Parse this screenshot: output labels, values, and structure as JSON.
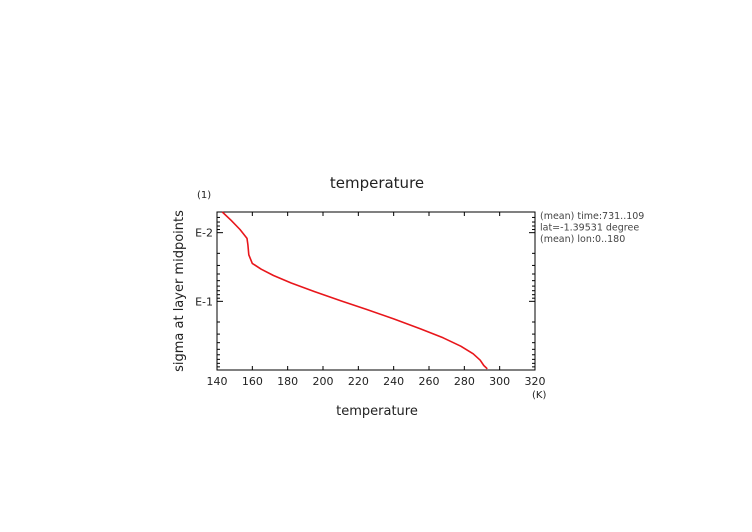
{
  "chart_data": {
    "type": "line",
    "title": "temperature",
    "xlabel": "temperature",
    "ylabel": "sigma at layer midpoints",
    "x_unit": "(K)",
    "y_unit": "(1)",
    "xlim": [
      140,
      320
    ],
    "x_ticks": [
      140,
      160,
      180,
      200,
      220,
      240,
      260,
      280,
      300,
      320
    ],
    "y_scale": "log",
    "ylim": [
      0.005,
      1.0
    ],
    "y_tick_labels": [
      {
        "label": "E-2",
        "value": 0.01
      },
      {
        "label": "E-1",
        "value": 0.1
      }
    ],
    "grid": false,
    "annotations": [
      "(mean) time:731..109",
      "lat=-1.39531 degree",
      "(mean) lon:0..180"
    ],
    "series": [
      {
        "color": "#e8161b",
        "x": [
          143,
          148,
          153,
          157,
          157.5,
          158,
          160,
          165,
          172,
          182,
          195,
          210,
          225,
          240,
          255,
          268,
          278,
          285,
          289,
          291,
          293
        ],
        "y": [
          0.005,
          0.0066,
          0.009,
          0.0121,
          0.015,
          0.021,
          0.028,
          0.034,
          0.042,
          0.054,
          0.072,
          0.098,
          0.132,
          0.18,
          0.25,
          0.34,
          0.45,
          0.58,
          0.72,
          0.86,
          0.96
        ]
      }
    ]
  }
}
